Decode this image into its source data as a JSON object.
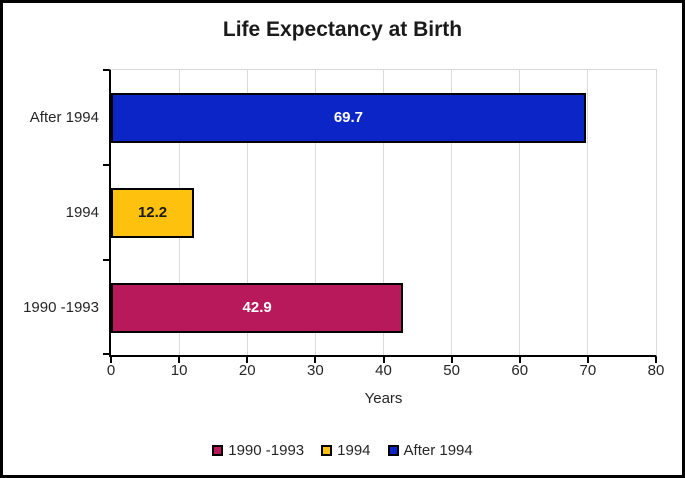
{
  "chart_data": {
    "type": "bar",
    "orientation": "horizontal",
    "title": "Life Expectancy at Birth",
    "xlabel": "Years",
    "categories": [
      "After 1994",
      "1994",
      "1990 -1993"
    ],
    "values": [
      69.7,
      12.2,
      42.9
    ],
    "value_labels": [
      "69.7",
      "12.2",
      "42.9"
    ],
    "bar_colors": [
      "#0C25C7",
      "#FEC10D",
      "#B7195A"
    ],
    "bar_label_colors": [
      "#FFFFFF",
      "#1A1A1A",
      "#FFFFFF"
    ],
    "xlim": [
      0,
      80
    ],
    "x_ticks": [
      "0",
      "10",
      "20",
      "30",
      "40",
      "50",
      "60",
      "70",
      "80"
    ],
    "grid": true,
    "gridline_color": "#D9D9D9",
    "axis_color": "#000000",
    "frame_border_color": "#000000",
    "legend_position": "bottom",
    "legend": [
      {
        "label": "1990 -1993",
        "color": "#B7195A"
      },
      {
        "label": "1994",
        "color": "#FEC10D"
      },
      {
        "label": "After 1994",
        "color": "#0C25C7"
      }
    ]
  }
}
